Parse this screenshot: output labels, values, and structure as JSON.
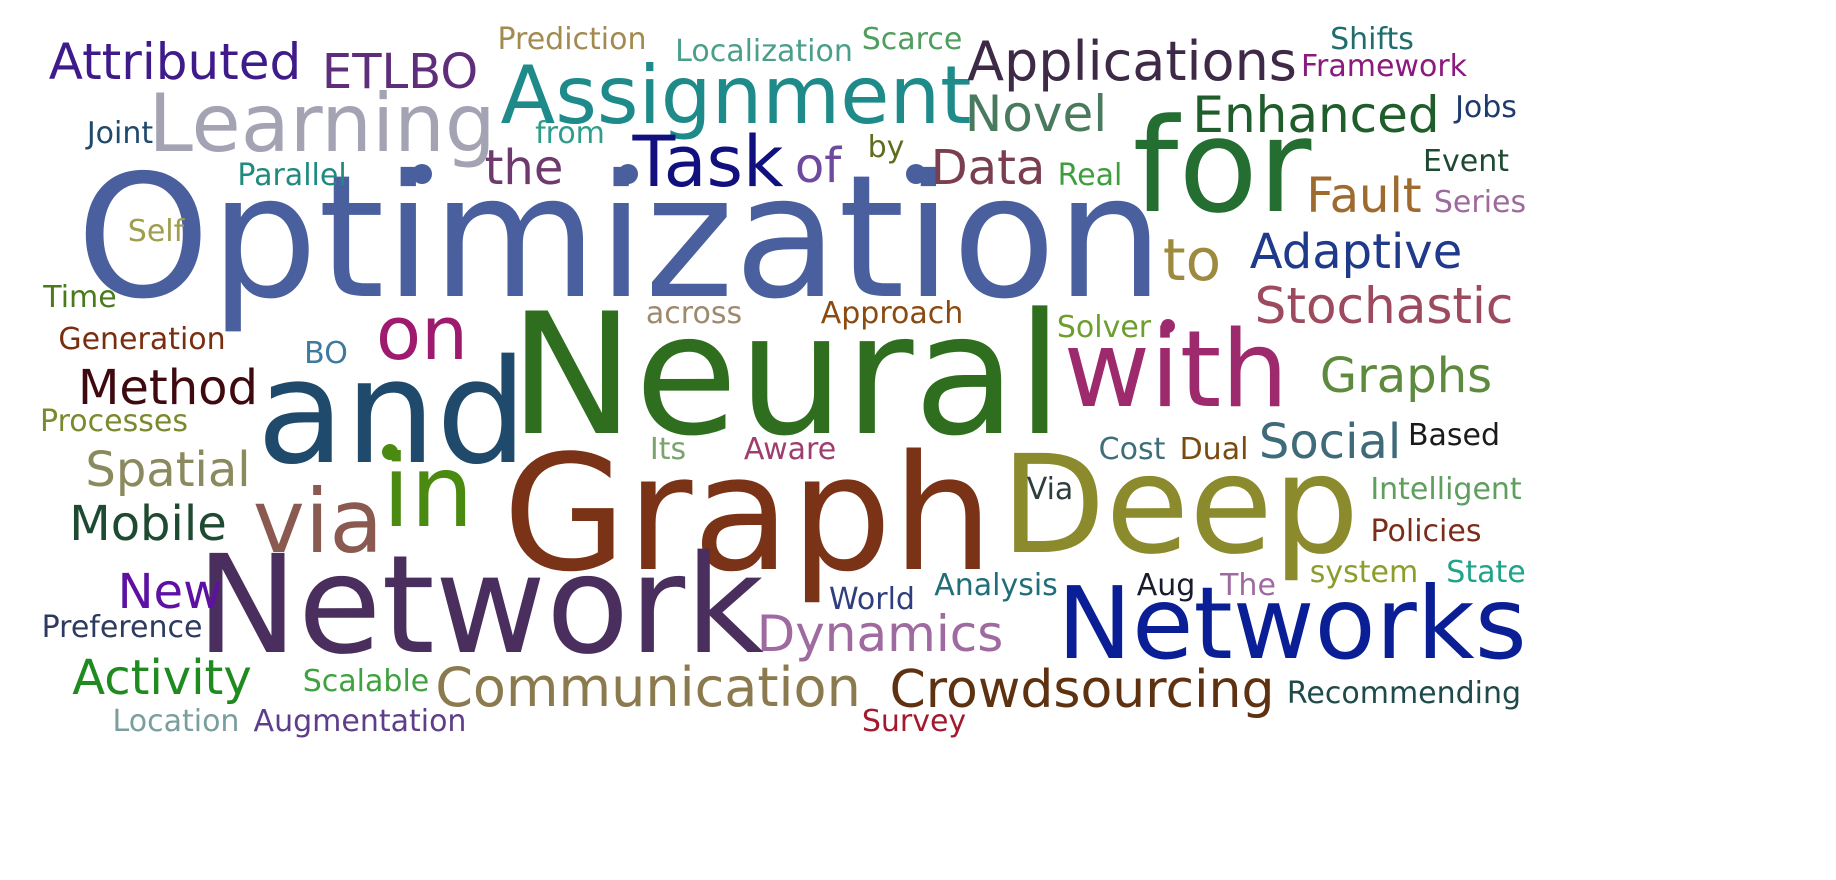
{
  "words": [
    {
      "text": "Optimization",
      "color": "#4a5f9e"
    },
    {
      "text": "Neural",
      "color": "#2e6e1e"
    },
    {
      "text": "Graph",
      "color": "#7a3316"
    },
    {
      "text": "Deep",
      "color": "#8b8a2c"
    },
    {
      "text": "Network",
      "color": "#4a2e5e"
    },
    {
      "text": "and",
      "color": "#1f4a6b"
    },
    {
      "text": "for",
      "color": "#256e32"
    },
    {
      "text": "Networks",
      "color": "#0a1f96"
    },
    {
      "text": "with",
      "color": "#9e2a6e"
    },
    {
      "text": "Assignment",
      "color": "#1f8a8a"
    },
    {
      "text": "Learning",
      "color": "#a3a3b3"
    },
    {
      "text": "in",
      "color": "#4b8a10"
    },
    {
      "text": "via",
      "color": "#8a5a50"
    },
    {
      "text": "Task",
      "color": "#10107e"
    },
    {
      "text": "on",
      "color": "#9e1a6e"
    },
    {
      "text": "Applications",
      "color": "#3e2a46"
    },
    {
      "text": "Communication",
      "color": "#8a7a4e"
    },
    {
      "text": "Crowdsourcing",
      "color": "#5e3210"
    },
    {
      "text": "Dynamics",
      "color": "#9e6aa0"
    },
    {
      "text": "Enhanced",
      "color": "#1f5e2a"
    },
    {
      "text": "Stochastic",
      "color": "#9e4a5e"
    },
    {
      "text": "Attributed",
      "color": "#3e1a8a"
    },
    {
      "text": "Novel",
      "color": "#4a7a5e"
    },
    {
      "text": "Graphs",
      "color": "#5e8a3e"
    },
    {
      "text": "Adaptive",
      "color": "#1f3a8a"
    },
    {
      "text": "Method",
      "color": "#3e0a10"
    },
    {
      "text": "Spatial",
      "color": "#8a8a5e"
    },
    {
      "text": "Mobile",
      "color": "#1f4a32"
    },
    {
      "text": "Social",
      "color": "#3e6a7a"
    },
    {
      "text": "ETLBO",
      "color": "#5e2e7a"
    },
    {
      "text": "Activity",
      "color": "#1f8a1f"
    },
    {
      "text": "Data",
      "color": "#7a3e4e"
    },
    {
      "text": "the",
      "color": "#6e3a6e"
    },
    {
      "text": "of",
      "color": "#6e4a9e"
    },
    {
      "text": "Fault",
      "color": "#9e6a2e"
    },
    {
      "text": "to",
      "color": "#9e8a3e"
    },
    {
      "text": "New",
      "color": "#5e10a3"
    },
    {
      "text": "Localization",
      "color": "#4a9e8a"
    },
    {
      "text": "Prediction",
      "color": "#a38a4e"
    },
    {
      "text": "Scarce",
      "color": "#4e9e5e"
    },
    {
      "text": "Shifts",
      "color": "#1f6e6e"
    },
    {
      "text": "Framework",
      "color": "#8a1a7e"
    },
    {
      "text": "Jobs",
      "color": "#1f3a6e"
    },
    {
      "text": "Event",
      "color": "#1f4a32"
    },
    {
      "text": "Series",
      "color": "#9e6a9e"
    },
    {
      "text": "Joint",
      "color": "#1f4a6e"
    },
    {
      "text": "from",
      "color": "#2e9e8a"
    },
    {
      "text": "by",
      "color": "#5e6e1e"
    },
    {
      "text": "Parallel",
      "color": "#1f8a7e"
    },
    {
      "text": "Real",
      "color": "#3e9e3e"
    },
    {
      "text": "Self",
      "color": "#9e9e4e"
    },
    {
      "text": "Time",
      "color": "#4a7a1a"
    },
    {
      "text": "Generation",
      "color": "#7a2e10"
    },
    {
      "text": "across",
      "color": "#9e8a6e"
    },
    {
      "text": "Approach",
      "color": "#8a4a10"
    },
    {
      "text": "Solver",
      "color": "#6e9e2e"
    },
    {
      "text": "BO",
      "color": "#3e7a9e"
    },
    {
      "text": "Processes",
      "color": "#7a8a2e"
    },
    {
      "text": "Its",
      "color": "#7aa36e"
    },
    {
      "text": "Aware",
      "color": "#9e3e6e"
    },
    {
      "text": "Cost",
      "color": "#3e6e7a"
    },
    {
      "text": "Dual",
      "color": "#7a4a10"
    },
    {
      "text": "Based",
      "color": "#1a1a1a"
    },
    {
      "text": "Via",
      "color": "#2e3e3e"
    },
    {
      "text": "Intelligent",
      "color": "#5e9e5e"
    },
    {
      "text": "Policies",
      "color": "#7a2e1a"
    },
    {
      "text": "system",
      "color": "#8a9e2e"
    },
    {
      "text": "State",
      "color": "#1fa38a"
    },
    {
      "text": "Aug",
      "color": "#1a1a2e"
    },
    {
      "text": "The",
      "color": "#9e6aa0"
    },
    {
      "text": "World",
      "color": "#2e3e7e"
    },
    {
      "text": "Analysis",
      "color": "#1f6e7a"
    },
    {
      "text": "Preference",
      "color": "#2e3a5e"
    },
    {
      "text": "Scalable",
      "color": "#3ea33e"
    },
    {
      "text": "Location",
      "color": "#7a9e9e"
    },
    {
      "text": "Augmentation",
      "color": "#5e3e8a"
    },
    {
      "text": "Survey",
      "color": "#a31a2e"
    },
    {
      "text": "Recommending",
      "color": "#1f4a4a"
    }
  ]
}
